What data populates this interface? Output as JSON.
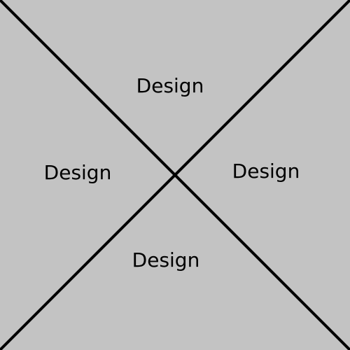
{
  "colors": {
    "background": "#c3c3c3",
    "lines": "#000000",
    "text": "#000000"
  },
  "quadrants": {
    "top": "Design",
    "left": "Design",
    "right": "Design",
    "bottom": "Design"
  }
}
